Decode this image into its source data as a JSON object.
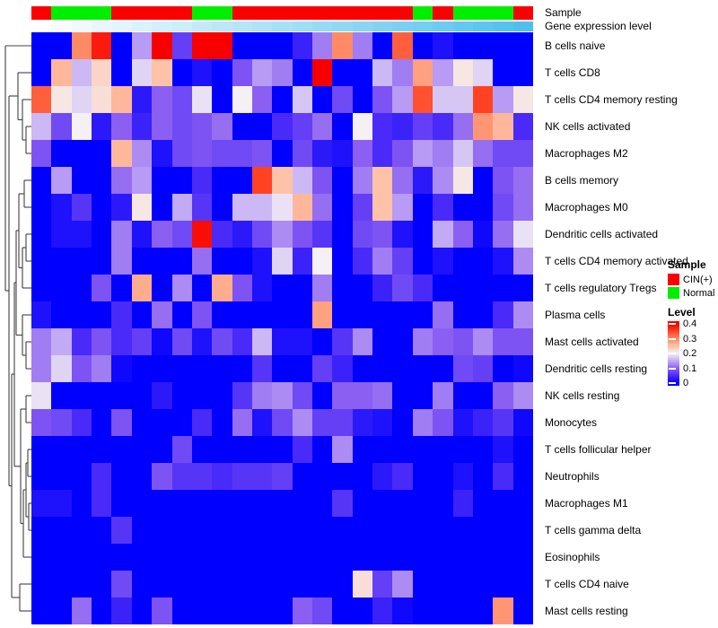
{
  "annotation_labels": {
    "sample": "Sample",
    "expression": "Gene expression level"
  },
  "legend": {
    "sample_title": "Sample",
    "sample_items": [
      {
        "label": "CIN(+)",
        "color": "#fb0000"
      },
      {
        "label": "Normal",
        "color": "#00ef00"
      }
    ],
    "level_title": "Level",
    "level_ticks": [
      "0.4",
      "0.3",
      "0.2",
      "0.1",
      "0"
    ]
  },
  "chart_data": {
    "type": "heatmap",
    "title": "",
    "n_columns": 25,
    "column_labels_visible": false,
    "rows": [
      "B cells naive",
      "T cells CD8",
      "T cells CD4 memory resting",
      "NK cells activated",
      "Macrophages M2",
      "B cells memory",
      "Macrophages M0",
      "Dendritic cells activated",
      "T cells CD4 memory activated",
      "T cells regulatory  Tregs",
      "Plasma cells",
      "Mast cells activated",
      "Dendritic cells resting",
      "NK cells resting",
      "Monocytes",
      "T cells follicular helper",
      "Neutrophils",
      "Macrophages M1",
      "T cells gamma delta",
      "Eosinophils",
      "T cells CD4 naive",
      "Mast cells resting"
    ],
    "values": [
      [
        0,
        0,
        0.3,
        0.38,
        0,
        0.14,
        0.4,
        0.07,
        0.4,
        0.4,
        0,
        0,
        0,
        0.04,
        0.12,
        0.3,
        0.12,
        0,
        0.33,
        0,
        0.02,
        0,
        0,
        0,
        0
      ],
      [
        0,
        0.26,
        0.16,
        0.23,
        0,
        0.18,
        0.25,
        0,
        0.02,
        0,
        0.09,
        0.14,
        0.12,
        0,
        0.4,
        0,
        0,
        0.16,
        0.12,
        0.28,
        0.14,
        0.21,
        0.18,
        0,
        0
      ],
      [
        0.33,
        0.21,
        0.18,
        0.22,
        0.26,
        0.03,
        0.1,
        0.08,
        0.19,
        0,
        0.2,
        0.1,
        0,
        0.17,
        0,
        0.08,
        0,
        0.09,
        0.14,
        0.34,
        0.17,
        0.17,
        0.35,
        0.14,
        0.21
      ],
      [
        0.16,
        0.08,
        0.2,
        0.03,
        0.1,
        0.04,
        0.1,
        0.08,
        0.09,
        0.11,
        0,
        0,
        0.05,
        0.07,
        0.11,
        0,
        0.2,
        0.05,
        0.04,
        0.07,
        0.05,
        0.11,
        0.29,
        0.26,
        0.05
      ],
      [
        0.09,
        0,
        0,
        0,
        0.26,
        0.13,
        0.02,
        0.08,
        0.09,
        0.08,
        0.08,
        0.09,
        0,
        0.08,
        0.03,
        0.02,
        0.1,
        0.05,
        0.09,
        0.14,
        0.12,
        0.17,
        0.11,
        0.08,
        0.08
      ],
      [
        0,
        0.14,
        0,
        0,
        0.11,
        0.14,
        0,
        0,
        0.05,
        0,
        0,
        0.35,
        0.25,
        0.16,
        0.09,
        0,
        0.12,
        0.25,
        0.11,
        0.03,
        0.13,
        0.21,
        0,
        0.09,
        0.11
      ],
      [
        0,
        0.02,
        0.06,
        0,
        0.03,
        0.21,
        0,
        0.15,
        0.06,
        0,
        0.16,
        0.16,
        0.19,
        0.26,
        0.11,
        0,
        0.07,
        0.25,
        0.14,
        0,
        0.05,
        0,
        0,
        0.08,
        0.11
      ],
      [
        0,
        0.02,
        0.02,
        0,
        0.12,
        0.02,
        0.1,
        0.08,
        0.39,
        0.05,
        0.03,
        0.08,
        0.13,
        0.09,
        0.06,
        0,
        0.08,
        0.09,
        0.02,
        0,
        0.15,
        0.1,
        0.01,
        0.11,
        0.19
      ],
      [
        0,
        0,
        0,
        0,
        0.12,
        0,
        0,
        0,
        0.11,
        0,
        0,
        0.02,
        0.18,
        0.04,
        0.2,
        0,
        0.05,
        0.12,
        0.07,
        0,
        0.02,
        0,
        0,
        0.02,
        0.13
      ],
      [
        0,
        0,
        0,
        0.09,
        0,
        0.27,
        0,
        0.13,
        0,
        0.27,
        0.09,
        0.02,
        0,
        0,
        0.12,
        0,
        0,
        0.04,
        0.08,
        0.05,
        0,
        0,
        0,
        0,
        0
      ],
      [
        0.02,
        0,
        0,
        0,
        0.05,
        0,
        0.11,
        0,
        0.09,
        0,
        0,
        0,
        0,
        0,
        0.28,
        0,
        0,
        0,
        0,
        0,
        0.11,
        0,
        0,
        0.05,
        0.13
      ],
      [
        0.12,
        0.15,
        0.05,
        0.09,
        0.05,
        0.07,
        0.01,
        0.08,
        0.02,
        0.08,
        0.05,
        0.16,
        0.02,
        0.02,
        0,
        0.06,
        0.13,
        0,
        0,
        0.12,
        0.1,
        0.09,
        0.13,
        0.09,
        0.09
      ],
      [
        0.12,
        0.18,
        0.09,
        0.12,
        0.01,
        0,
        0,
        0,
        0,
        0,
        0,
        0.06,
        0,
        0,
        0.07,
        0.04,
        0,
        0,
        0,
        0,
        0,
        0.08,
        0.07,
        0,
        0.01
      ],
      [
        0.19,
        0,
        0,
        0,
        0,
        0,
        0.03,
        0,
        0,
        0,
        0.06,
        0.12,
        0.13,
        0.08,
        0,
        0.1,
        0.1,
        0.11,
        0,
        0,
        0.12,
        0,
        0,
        0.1,
        0.13
      ],
      [
        0.09,
        0.08,
        0.05,
        0,
        0.09,
        0,
        0,
        0,
        0.05,
        0,
        0.11,
        0.02,
        0.08,
        0.13,
        0.07,
        0.07,
        0.03,
        0.02,
        0,
        0.12,
        0.09,
        0.02,
        0.04,
        0.06,
        0.01
      ],
      [
        0,
        0,
        0,
        0,
        0,
        0,
        0,
        0.08,
        0,
        0,
        0,
        0,
        0,
        0.05,
        0,
        0.13,
        0,
        0,
        0,
        0,
        0,
        0,
        0,
        0.02,
        0
      ],
      [
        0,
        0,
        0,
        0.05,
        0,
        0,
        0.09,
        0.06,
        0.06,
        0.05,
        0.06,
        0.06,
        0.07,
        0,
        0,
        0,
        0,
        0.03,
        0.05,
        0,
        0,
        0.02,
        0,
        0.05,
        0
      ],
      [
        0.02,
        0.02,
        0,
        0.05,
        0,
        0,
        0,
        0,
        0,
        0,
        0,
        0,
        0,
        0,
        0,
        0.06,
        0,
        0,
        0,
        0,
        0,
        0.04,
        0,
        0,
        0
      ],
      [
        0,
        0,
        0,
        0,
        0.06,
        0,
        0,
        0,
        0,
        0,
        0,
        0,
        0,
        0,
        0,
        0,
        0,
        0,
        0,
        0,
        0,
        0,
        0,
        0,
        0
      ],
      [
        0,
        0,
        0,
        0,
        0,
        0,
        0,
        0,
        0,
        0,
        0,
        0,
        0,
        0,
        0,
        0,
        0,
        0,
        0,
        0,
        0,
        0,
        0,
        0,
        0
      ],
      [
        0,
        0,
        0,
        0,
        0.08,
        0,
        0,
        0,
        0,
        0,
        0,
        0,
        0,
        0,
        0,
        0,
        0.22,
        0.07,
        0.13,
        0,
        0,
        0,
        0,
        0,
        0
      ],
      [
        0,
        0,
        0.11,
        0,
        0.04,
        0,
        0.09,
        0,
        0,
        0,
        0,
        0,
        0,
        0.1,
        0.08,
        0,
        0,
        0.04,
        0.01,
        0,
        0,
        0,
        0,
        0.29,
        0
      ]
    ],
    "column_annotation": {
      "sample_groups": [
        "CIN(+)",
        "Normal",
        "Normal",
        "Normal",
        "CIN(+)",
        "CIN(+)",
        "CIN(+)",
        "CIN(+)",
        "Normal",
        "Normal",
        "CIN(+)",
        "CIN(+)",
        "CIN(+)",
        "CIN(+)",
        "CIN(+)",
        "CIN(+)",
        "CIN(+)",
        "CIN(+)",
        "CIN(+)",
        "Normal",
        "CIN(+)",
        "Normal",
        "Normal",
        "Normal",
        "CIN(+)"
      ],
      "sample_colors": {
        "CIN(+)": "#fb0000",
        "Normal": "#00ef00"
      },
      "gene_expression_gradient": {
        "from": "#ffffff",
        "to": "#4fc0ee"
      }
    },
    "level_scale": {
      "min": 0,
      "max": 0.4,
      "stops": [
        [
          0,
          "#0000fe"
        ],
        [
          0.05,
          "#4a2af8"
        ],
        [
          0.1,
          "#8a5ff2"
        ],
        [
          0.15,
          "#c2aaf4"
        ],
        [
          0.2,
          "#f4f0f4"
        ],
        [
          0.25,
          "#fec2a8"
        ],
        [
          0.3,
          "#ff8a66"
        ],
        [
          0.35,
          "#ff4322"
        ],
        [
          0.4,
          "#f80000"
        ]
      ]
    },
    "legend_position": "right",
    "grid": false
  },
  "dendrogram": {
    "color": "#404040",
    "segments": [
      [
        36,
        141,
        29,
        141
      ],
      [
        36,
        171,
        29,
        171
      ],
      [
        29,
        141,
        29,
        171
      ],
      [
        36,
        111,
        25,
        111
      ],
      [
        29,
        156,
        25,
        156
      ],
      [
        25,
        111,
        25,
        156
      ],
      [
        36,
        81,
        20,
        81
      ],
      [
        25,
        133.5,
        20,
        133.5
      ],
      [
        20,
        81,
        20,
        133.5
      ],
      [
        36,
        201,
        27,
        201
      ],
      [
        36,
        231,
        27,
        231
      ],
      [
        27,
        201,
        27,
        231
      ],
      [
        36,
        261,
        29,
        261
      ],
      [
        36,
        291,
        29,
        291
      ],
      [
        29,
        261,
        29,
        291
      ],
      [
        29,
        276,
        25,
        276
      ],
      [
        36,
        321,
        25,
        321
      ],
      [
        25,
        276,
        25,
        321
      ],
      [
        27,
        216,
        21,
        216
      ],
      [
        25,
        298.5,
        21,
        298.5
      ],
      [
        21,
        216,
        21,
        298.5
      ],
      [
        36,
        381,
        29,
        381
      ],
      [
        36,
        411,
        29,
        411
      ],
      [
        29,
        381,
        29,
        411
      ],
      [
        36,
        351,
        25,
        351
      ],
      [
        29,
        396,
        25,
        396
      ],
      [
        25,
        351,
        25,
        396
      ],
      [
        21,
        257,
        18,
        257
      ],
      [
        25,
        373.5,
        18,
        373.5
      ],
      [
        18,
        257,
        18,
        373.5
      ],
      [
        36,
        441,
        29,
        441
      ],
      [
        36,
        471,
        29,
        471
      ],
      [
        29,
        441,
        29,
        471
      ],
      [
        36,
        501,
        31,
        501
      ],
      [
        36,
        531,
        31,
        531
      ],
      [
        31,
        501,
        31,
        531
      ],
      [
        36,
        561,
        32,
        561
      ],
      [
        36,
        591,
        32,
        591
      ],
      [
        32,
        561,
        32,
        591
      ],
      [
        31,
        516,
        29,
        516
      ],
      [
        32,
        576,
        29,
        576
      ],
      [
        29,
        516,
        29,
        576
      ],
      [
        29,
        546,
        26,
        546
      ],
      [
        36,
        621,
        26,
        621
      ],
      [
        26,
        546,
        26,
        621
      ],
      [
        29,
        456,
        23,
        456
      ],
      [
        26,
        583.5,
        23,
        583.5
      ],
      [
        23,
        456,
        23,
        583.5
      ],
      [
        18,
        315,
        16,
        315
      ],
      [
        23,
        519.75,
        16,
        519.75
      ],
      [
        16,
        315,
        16,
        519.75
      ],
      [
        36,
        651,
        22,
        651
      ],
      [
        36,
        681,
        22,
        681
      ],
      [
        22,
        651,
        22,
        681
      ],
      [
        16,
        417,
        13,
        417
      ],
      [
        22,
        666,
        13,
        666
      ],
      [
        13,
        417,
        13,
        666
      ],
      [
        20,
        107,
        10,
        107
      ],
      [
        13,
        541.5,
        10,
        541.5
      ],
      [
        10,
        107,
        10,
        541.5
      ],
      [
        36,
        51,
        6,
        51
      ],
      [
        10,
        324,
        6,
        324
      ],
      [
        6,
        51,
        6,
        324
      ]
    ]
  }
}
